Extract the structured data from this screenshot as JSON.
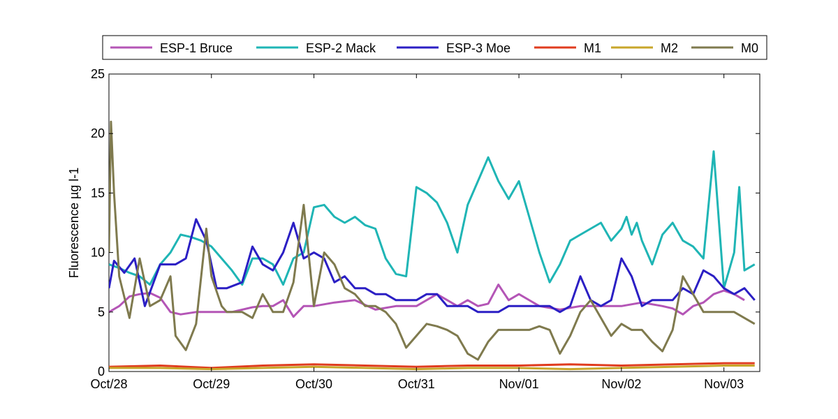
{
  "chart_data": {
    "type": "line",
    "title": "",
    "xlabel": "",
    "ylabel": "Fluorescence µg l-1",
    "x_ticks": [
      "Oct/28",
      "Oct/29",
      "Oct/30",
      "Oct/31",
      "Nov/01",
      "Nov/02",
      "Nov/03"
    ],
    "x_unit": "days since Oct/28",
    "xlim": [
      0,
      6.35
    ],
    "ylim": [
      0,
      25
    ],
    "y_ticks": [
      0,
      5,
      10,
      15,
      20,
      25
    ],
    "grid": false,
    "legend_position": "top, above plot (horizontal)",
    "series": [
      {
        "name": "ESP-1 Bruce",
        "color": "#b455b6",
        "x": [
          0,
          0.1,
          0.2,
          0.3,
          0.4,
          0.5,
          0.6,
          0.7,
          0.85,
          1.0,
          1.2,
          1.4,
          1.5,
          1.6,
          1.7,
          1.8,
          1.9,
          2.0,
          2.2,
          2.4,
          2.5,
          2.6,
          2.8,
          3.0,
          3.2,
          3.4,
          3.5,
          3.6,
          3.7,
          3.8,
          3.9,
          4.0,
          4.2,
          4.4,
          4.6,
          4.8,
          5.0,
          5.2,
          5.4,
          5.5,
          5.6,
          5.7,
          5.8,
          5.9,
          6.0,
          6.1,
          6.2
        ],
        "y": [
          5.0,
          5.5,
          6.3,
          6.5,
          6.6,
          6.2,
          5.0,
          4.8,
          5.0,
          5.0,
          5.0,
          5.4,
          5.5,
          5.5,
          6.0,
          4.6,
          5.5,
          5.5,
          5.8,
          6.0,
          5.6,
          5.2,
          5.5,
          5.5,
          6.5,
          5.5,
          6.0,
          5.5,
          5.7,
          7.3,
          6.0,
          6.5,
          5.5,
          5.2,
          5.5,
          5.5,
          5.5,
          5.8,
          5.5,
          5.3,
          4.8,
          5.5,
          5.8,
          6.5,
          6.8,
          6.5,
          6.0
        ]
      },
      {
        "name": "ESP-2 Mack",
        "color": "#1fb5b5",
        "x": [
          0,
          0.1,
          0.2,
          0.3,
          0.4,
          0.5,
          0.6,
          0.7,
          0.8,
          0.9,
          1.0,
          1.1,
          1.2,
          1.3,
          1.4,
          1.5,
          1.6,
          1.7,
          1.8,
          1.9,
          2.0,
          2.1,
          2.2,
          2.3,
          2.4,
          2.5,
          2.6,
          2.7,
          2.8,
          2.9,
          3.0,
          3.1,
          3.2,
          3.3,
          3.4,
          3.5,
          3.6,
          3.7,
          3.8,
          3.9,
          4.0,
          4.1,
          4.2,
          4.3,
          4.4,
          4.5,
          4.6,
          4.7,
          4.8,
          4.9,
          5.0,
          5.05,
          5.1,
          5.15,
          5.2,
          5.3,
          5.4,
          5.5,
          5.6,
          5.7,
          5.8,
          5.9,
          6.0,
          6.05,
          6.1,
          6.15,
          6.2,
          6.3
        ],
        "y": [
          9.0,
          8.7,
          8.3,
          8.0,
          7.3,
          9.0,
          10.0,
          11.5,
          11.3,
          11.0,
          10.5,
          9.5,
          8.5,
          7.3,
          9.5,
          9.5,
          9.0,
          7.3,
          9.5,
          10.0,
          13.8,
          14.0,
          13.0,
          12.5,
          13.0,
          12.3,
          12.0,
          9.5,
          8.2,
          8.0,
          15.5,
          15.0,
          14.2,
          12.5,
          10.0,
          14.0,
          16.0,
          18.0,
          16.0,
          14.5,
          16.0,
          13.0,
          10.0,
          7.5,
          9.0,
          11.0,
          11.5,
          12.0,
          12.5,
          11.0,
          12.0,
          13.0,
          11.5,
          12.5,
          11.0,
          9.0,
          11.5,
          12.5,
          11.0,
          10.5,
          9.5,
          18.5,
          7.0,
          8.5,
          10.0,
          15.5,
          8.5,
          9.0
        ]
      },
      {
        "name": "ESP-3 Moe",
        "color": "#2b1fc4",
        "x": [
          0,
          0.05,
          0.15,
          0.25,
          0.35,
          0.5,
          0.55,
          0.65,
          0.75,
          0.85,
          0.95,
          1.05,
          1.15,
          1.3,
          1.4,
          1.5,
          1.6,
          1.7,
          1.8,
          1.9,
          2.0,
          2.1,
          2.2,
          2.3,
          2.4,
          2.5,
          2.6,
          2.7,
          2.8,
          2.9,
          3.0,
          3.1,
          3.2,
          3.3,
          3.4,
          3.5,
          3.6,
          3.7,
          3.8,
          3.9,
          4.0,
          4.1,
          4.2,
          4.3,
          4.4,
          4.5,
          4.6,
          4.7,
          4.8,
          4.9,
          5.0,
          5.1,
          5.2,
          5.3,
          5.4,
          5.5,
          5.6,
          5.7,
          5.8,
          5.9,
          6.0,
          6.1,
          6.2,
          6.3
        ],
        "y": [
          7.0,
          9.3,
          8.3,
          9.5,
          5.5,
          9.0,
          9.0,
          9.0,
          9.5,
          12.8,
          11.0,
          7.0,
          7.0,
          7.5,
          10.5,
          9.0,
          8.5,
          10.0,
          12.5,
          9.5,
          10.0,
          9.5,
          7.5,
          8.0,
          7.0,
          7.0,
          6.5,
          6.5,
          6.0,
          6.0,
          6.0,
          6.5,
          6.5,
          5.5,
          5.5,
          5.5,
          5.0,
          5.0,
          5.0,
          5.5,
          5.5,
          5.5,
          5.5,
          5.5,
          5.0,
          5.5,
          8.0,
          6.0,
          5.5,
          6.0,
          9.5,
          8.0,
          5.5,
          6.0,
          6.0,
          6.0,
          7.0,
          6.5,
          8.5,
          8.0,
          7.0,
          6.5,
          7.0,
          6.0
        ]
      },
      {
        "name": "M1",
        "color": "#e03c1f",
        "x": [
          0,
          0.5,
          1.0,
          1.5,
          2.0,
          2.5,
          3.0,
          3.5,
          4.0,
          4.5,
          5.0,
          5.5,
          6.0,
          6.3
        ],
        "y": [
          0.4,
          0.5,
          0.3,
          0.5,
          0.6,
          0.5,
          0.4,
          0.5,
          0.5,
          0.6,
          0.5,
          0.6,
          0.7,
          0.7
        ]
      },
      {
        "name": "M2",
        "color": "#c8a62a",
        "x": [
          0,
          0.5,
          1.0,
          1.5,
          2.0,
          2.5,
          3.0,
          3.5,
          4.0,
          4.5,
          5.0,
          5.5,
          6.0,
          6.3
        ],
        "y": [
          0.3,
          0.3,
          0.2,
          0.3,
          0.4,
          0.3,
          0.2,
          0.3,
          0.3,
          0.2,
          0.3,
          0.4,
          0.5,
          0.5
        ]
      },
      {
        "name": "M0",
        "color": "#7f7a4e",
        "x": [
          0,
          0.02,
          0.05,
          0.1,
          0.2,
          0.3,
          0.4,
          0.5,
          0.6,
          0.65,
          0.75,
          0.85,
          0.95,
          1.0,
          1.1,
          1.15,
          1.3,
          1.4,
          1.5,
          1.6,
          1.7,
          1.8,
          1.9,
          2.0,
          2.1,
          2.2,
          2.3,
          2.4,
          2.5,
          2.6,
          2.7,
          2.8,
          2.9,
          3.0,
          3.1,
          3.2,
          3.3,
          3.4,
          3.5,
          3.6,
          3.7,
          3.8,
          3.9,
          4.0,
          4.1,
          4.2,
          4.3,
          4.4,
          4.5,
          4.6,
          4.7,
          4.8,
          4.9,
          5.0,
          5.1,
          5.2,
          5.3,
          5.4,
          5.5,
          5.6,
          5.7,
          5.8,
          5.9,
          6.0,
          6.1,
          6.2,
          6.3
        ],
        "y": [
          10.0,
          21.0,
          15.0,
          8.0,
          4.5,
          9.5,
          5.5,
          6.0,
          8.0,
          3.0,
          1.8,
          4.0,
          12.0,
          8.0,
          5.5,
          5.0,
          5.0,
          4.5,
          6.5,
          5.0,
          5.0,
          7.5,
          14.0,
          5.5,
          10.0,
          9.0,
          7.0,
          6.5,
          5.5,
          5.5,
          5.0,
          4.0,
          2.0,
          3.0,
          4.0,
          3.8,
          3.5,
          3.0,
          1.5,
          1.0,
          2.5,
          3.5,
          3.5,
          3.5,
          3.5,
          3.8,
          3.5,
          1.5,
          3.0,
          5.0,
          6.0,
          4.5,
          3.0,
          4.0,
          3.5,
          3.5,
          2.5,
          1.7,
          3.5,
          8.0,
          6.5,
          5.0,
          5.0,
          5.0,
          5.0,
          4.5,
          4.0
        ]
      }
    ]
  }
}
